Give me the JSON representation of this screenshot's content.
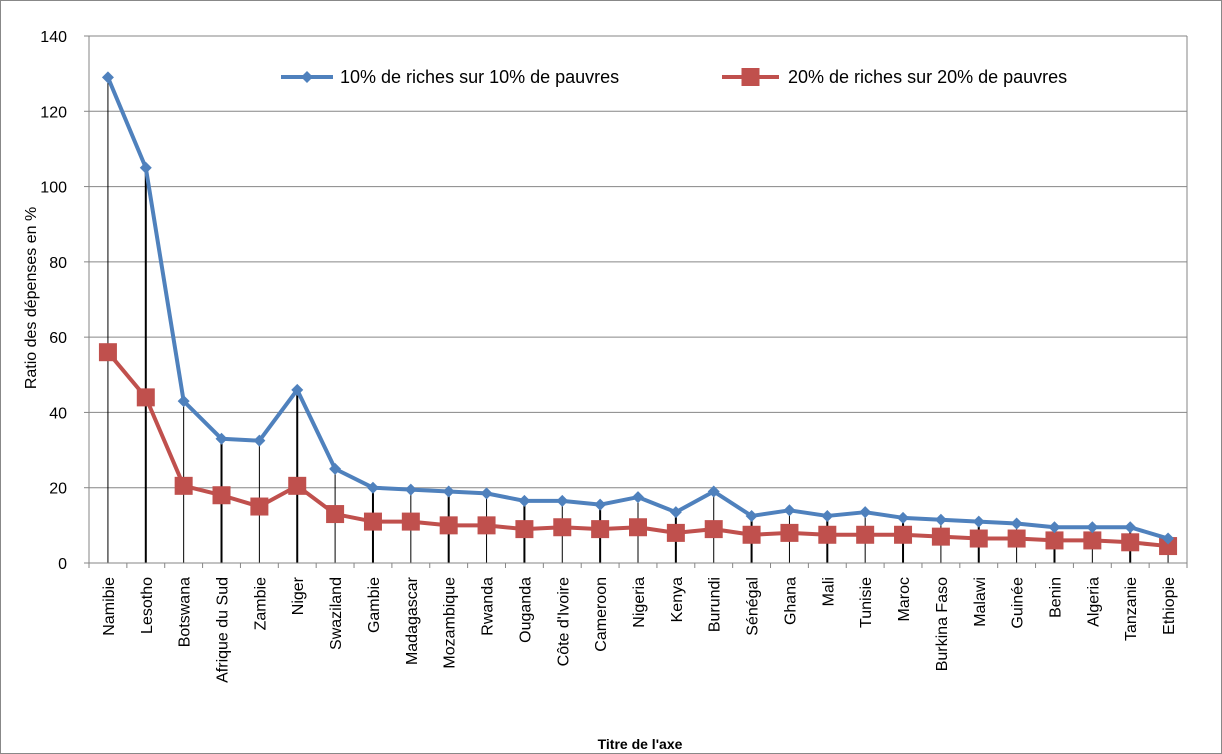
{
  "chart_data": {
    "type": "line",
    "title": "",
    "xlabel": "Titre de l'axe",
    "ylabel": "Ratio des dépenses en %",
    "ylim": [
      0,
      140
    ],
    "yticks": [
      0,
      20,
      40,
      60,
      80,
      100,
      120,
      140
    ],
    "grid": "horizontal",
    "legend_position": "top",
    "categories": [
      "Namibie",
      "Lesotho",
      "Botswana",
      "Afrique du Sud",
      "Zambie",
      "Niger",
      "Swaziland",
      "Gambie",
      "Madagascar",
      "Mozambique",
      "Rwanda",
      "Ouganda",
      "Côte d'Ivoire",
      "Cameroon",
      "Nigeria",
      "Kenya",
      "Burundi",
      "Sénégal",
      "Ghana",
      "Mali",
      "Tunisie",
      "Maroc",
      "Burkina Faso",
      "Malawi",
      "Guinée",
      "Benin",
      "Algeria",
      "Tanzanie",
      "Ethiopie"
    ],
    "series": [
      {
        "name": "10% de riches sur 10% de pauvres",
        "color": "#4F81BD",
        "marker": "diamond",
        "values": [
          129,
          105,
          43,
          33,
          32.5,
          46,
          25,
          20,
          19.5,
          19,
          18.5,
          16.5,
          16.5,
          15.5,
          17.5,
          13.5,
          19,
          12.5,
          14,
          12.5,
          13.5,
          12,
          11.5,
          11,
          10.5,
          9.5,
          9.5,
          9.5,
          6.5
        ]
      },
      {
        "name": "20% de riches sur 20% de pauvres",
        "color": "#C0504D",
        "marker": "square",
        "values": [
          56,
          44,
          20.5,
          18,
          15,
          20.5,
          13,
          11,
          11,
          10,
          10,
          9,
          9.5,
          9,
          9.5,
          8,
          9,
          7.5,
          8,
          7.5,
          7.5,
          7.5,
          7,
          6.5,
          6.5,
          6,
          6,
          5.5,
          4.5
        ]
      }
    ],
    "drop_line_color": "#000000",
    "gridline_color": "#868686"
  }
}
